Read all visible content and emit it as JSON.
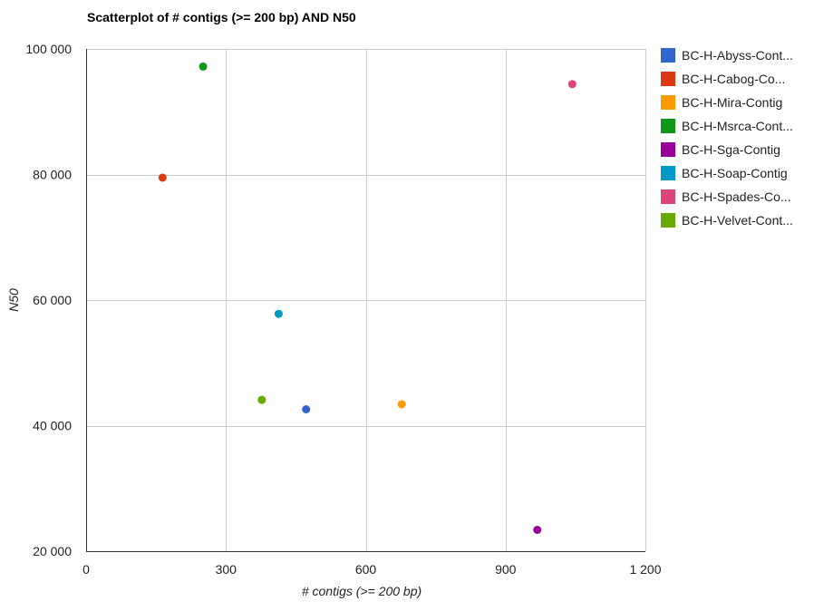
{
  "chart_data": {
    "type": "scatter",
    "title": "Scatterplot of # contigs (>= 200 bp) AND N50",
    "xlabel": "# contigs (>= 200 bp)",
    "ylabel": "N50",
    "xlim": [
      0,
      1200
    ],
    "ylim": [
      20000,
      100000
    ],
    "x_ticks": [
      0,
      300,
      600,
      900,
      1200
    ],
    "x_tick_labels": [
      "0",
      "300",
      "600",
      "900",
      "1 200"
    ],
    "y_ticks": [
      20000,
      40000,
      60000,
      80000,
      100000
    ],
    "y_tick_labels": [
      "20 000",
      "40 000",
      "60 000",
      "80 000",
      "100 000"
    ],
    "grid": true,
    "legend_position": "right",
    "series": [
      {
        "name": "BC-H-Abyss-Cont...",
        "color": "#3366cc",
        "x": [
          472
        ],
        "y": [
          42600
        ]
      },
      {
        "name": "BC-H-Cabog-Co...",
        "color": "#dc3912",
        "x": [
          164
        ],
        "y": [
          79500
        ]
      },
      {
        "name": "BC-H-Mira-Contig",
        "color": "#ff9900",
        "x": [
          677
        ],
        "y": [
          43400
        ]
      },
      {
        "name": "BC-H-Msrca-Cont...",
        "color": "#109618",
        "x": [
          251
        ],
        "y": [
          97200
        ]
      },
      {
        "name": "BC-H-Sga-Contig",
        "color": "#990099",
        "x": [
          968
        ],
        "y": [
          23400
        ]
      },
      {
        "name": "BC-H-Soap-Contig",
        "color": "#0099c6",
        "x": [
          413
        ],
        "y": [
          57800
        ]
      },
      {
        "name": "BC-H-Spades-Co...",
        "color": "#dd4477",
        "x": [
          1043
        ],
        "y": [
          94400
        ]
      },
      {
        "name": "BC-H-Velvet-Cont...",
        "color": "#66aa00",
        "x": [
          377
        ],
        "y": [
          44100
        ]
      }
    ]
  }
}
